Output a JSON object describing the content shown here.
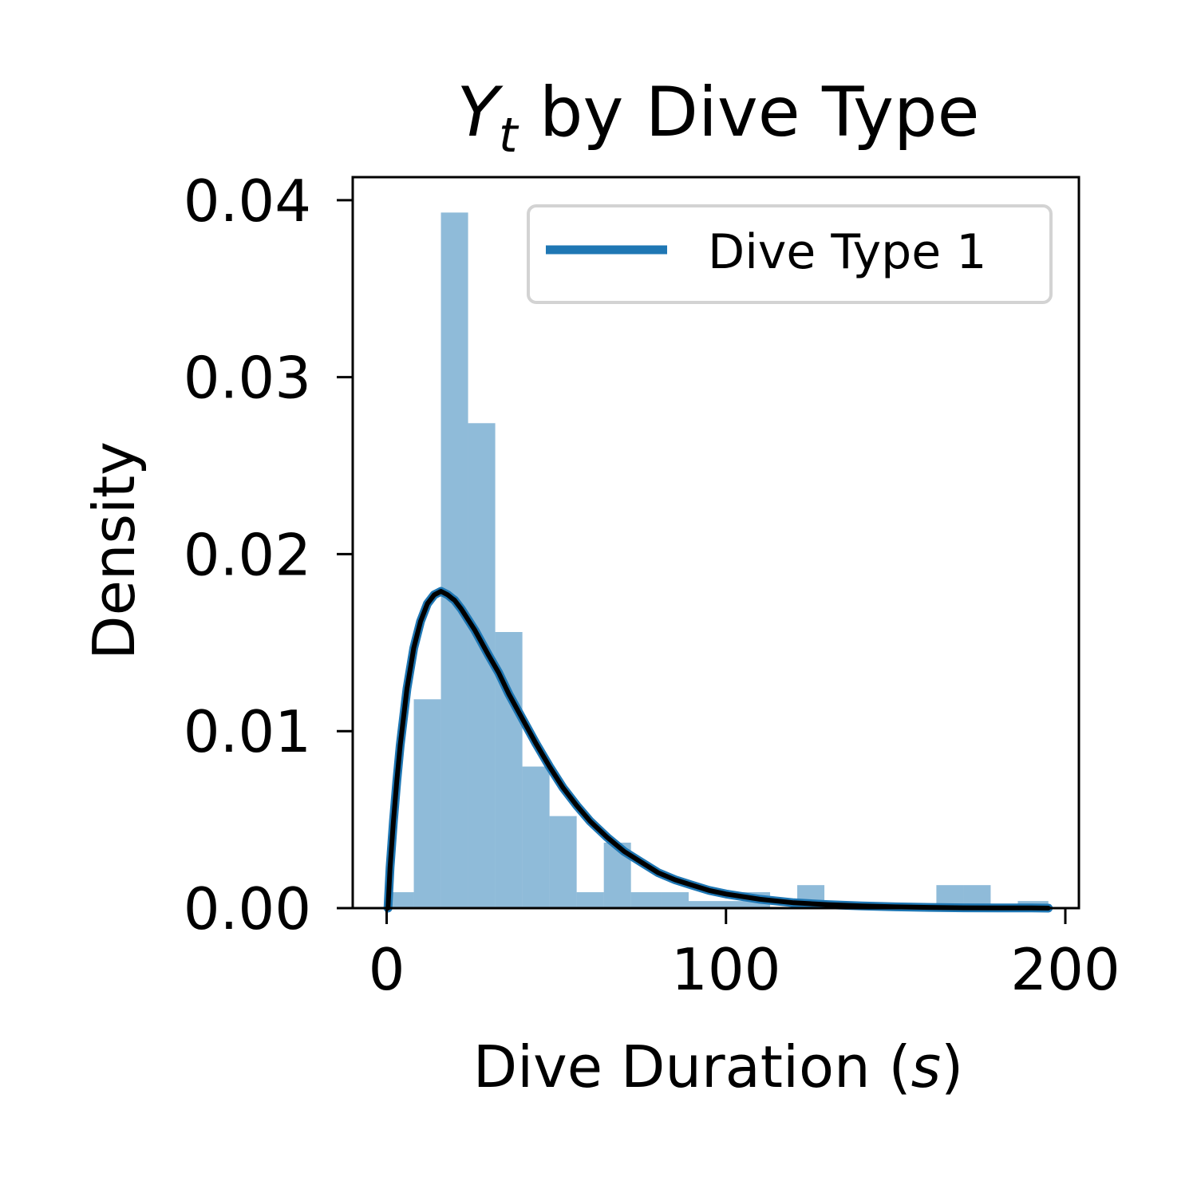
{
  "chart_data": {
    "type": "bar",
    "title": {
      "main": "Y",
      "sub": "t",
      "rest": " by Dive Type"
    },
    "xlabel": {
      "prefix": "Dive Duration (",
      "var": "s",
      "suffix": ")"
    },
    "ylabel": "Density",
    "xlim": [
      -10,
      204
    ],
    "ylim": [
      0,
      0.0413
    ],
    "xticks": [
      0,
      100,
      200
    ],
    "xtick_labels": [
      "0",
      "100",
      "200"
    ],
    "yticks": [
      0,
      0.01,
      0.02,
      0.03,
      0.04
    ],
    "ytick_labels": [
      "0.00",
      "0.01",
      "0.02",
      "0.03",
      "0.04"
    ],
    "grid": false,
    "histogram": {
      "color": "#1f77b4",
      "opacity": 0.5,
      "bins": [
        {
          "x0": 1.5,
          "x1": 8,
          "density": 0.0009
        },
        {
          "x0": 8,
          "x1": 16,
          "density": 0.0118
        },
        {
          "x0": 16,
          "x1": 24,
          "density": 0.0393
        },
        {
          "x0": 24,
          "x1": 32,
          "density": 0.0274
        },
        {
          "x0": 32,
          "x1": 40,
          "density": 0.0156
        },
        {
          "x0": 40,
          "x1": 48,
          "density": 0.008
        },
        {
          "x0": 48,
          "x1": 56,
          "density": 0.0052
        },
        {
          "x0": 56,
          "x1": 64,
          "density": 0.0009
        },
        {
          "x0": 64,
          "x1": 72,
          "density": 0.0037
        },
        {
          "x0": 72,
          "x1": 81,
          "density": 0.0009
        },
        {
          "x0": 81,
          "x1": 89,
          "density": 0.0009
        },
        {
          "x0": 89,
          "x1": 97,
          "density": 0.0004
        },
        {
          "x0": 97,
          "x1": 105,
          "density": 0.0004
        },
        {
          "x0": 105,
          "x1": 113,
          "density": 0.0009
        },
        {
          "x0": 121,
          "x1": 129,
          "density": 0.0013
        },
        {
          "x0": 162,
          "x1": 170,
          "density": 0.0013
        },
        {
          "x0": 170,
          "x1": 178,
          "density": 0.0013
        },
        {
          "x0": 186,
          "x1": 195,
          "density": 0.0004
        }
      ]
    },
    "series": [
      {
        "name": "Dive Type 1",
        "color": "#1f77b4",
        "outline_color": "#000000",
        "x": [
          0.4,
          1,
          2,
          3,
          4,
          6,
          8,
          10,
          12,
          14,
          16,
          18,
          19.3,
          20,
          22,
          24,
          26,
          28,
          30,
          33,
          36,
          40,
          44,
          48,
          52,
          56,
          60,
          65,
          70,
          75,
          80,
          85,
          90,
          95,
          100,
          110,
          120,
          130,
          140,
          150,
          160,
          170,
          180,
          190,
          195
        ],
        "y": [
          0.0,
          0.0023,
          0.0049,
          0.0072,
          0.0092,
          0.0124,
          0.0147,
          0.0162,
          0.0172,
          0.0177,
          0.0179,
          0.0177,
          0.0175,
          0.0174,
          0.0169,
          0.0163,
          0.0157,
          0.015,
          0.0143,
          0.0133,
          0.0121,
          0.0107,
          0.0093,
          0.008,
          0.0068,
          0.0058,
          0.0049,
          0.004,
          0.0032,
          0.0026,
          0.002,
          0.0016,
          0.0013,
          0.001,
          0.0008,
          0.0005,
          0.0003,
          0.0002,
          0.00012,
          7e-05,
          4e-05,
          2e-05,
          1e-05,
          1e-05,
          0.0
        ]
      }
    ],
    "legend": {
      "placement": "top-right",
      "labels": [
        "Dive Type 1"
      ]
    }
  }
}
